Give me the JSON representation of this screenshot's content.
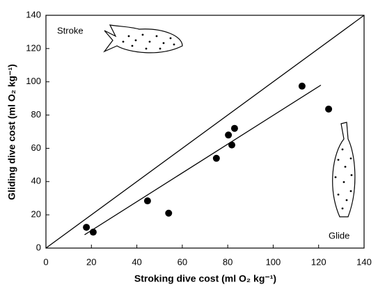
{
  "chart_data": {
    "type": "scatter",
    "x_label": "Stroking dive cost (ml O₂ kg⁻¹)",
    "y_label": "Gliding dive cost (ml O₂ kg⁻¹)",
    "annotations": [
      "Stroke",
      "Glide"
    ],
    "x": [
      17.8,
      20.8,
      44.7,
      54,
      75,
      80.3,
      83,
      81.8,
      112.7,
      124.4
    ],
    "values": [
      12.5,
      9.6,
      28.4,
      21,
      54,
      68,
      72,
      62,
      97.4,
      83.6
    ],
    "color": "#000000",
    "fit": {
      "x": [
        17,
        121
      ],
      "values": [
        8,
        98
      ]
    },
    "identity": {
      "x": [
        0,
        140
      ],
      "values": [
        0,
        140
      ]
    },
    "xlim": [
      0,
      140
    ],
    "ylim": [
      0,
      140
    ],
    "xticks": [
      0,
      20,
      40,
      60,
      80,
      100,
      120,
      140
    ],
    "yticks": [
      0,
      20,
      40,
      60,
      80,
      100,
      120,
      140
    ],
    "grid": false
  }
}
